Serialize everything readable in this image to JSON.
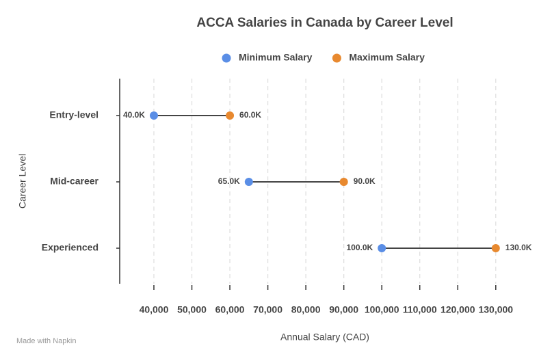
{
  "chart_data": {
    "type": "dumbbell",
    "title": "ACCA Salaries in Canada by Career Level",
    "categories": [
      "Entry-level",
      "Mid-career",
      "Experienced"
    ],
    "series": [
      {
        "name": "Minimum Salary",
        "color": "#5a8ee6",
        "values": [
          40000,
          65000,
          100000
        ],
        "value_labels": [
          "40.0K",
          "65.0K",
          "100.0K"
        ]
      },
      {
        "name": "Maximum Salary",
        "color": "#e8892f",
        "values": [
          60000,
          90000,
          130000
        ],
        "value_labels": [
          "60.0K",
          "90.0K",
          "130.0K"
        ]
      }
    ],
    "xlabel": "Annual Salary (CAD)",
    "ylabel": "Career Level",
    "xlim": [
      31000,
      134000
    ],
    "xticks": [
      {
        "value": 40000,
        "label": "40,000"
      },
      {
        "value": 50000,
        "label": "50,000"
      },
      {
        "value": 60000,
        "label": "60,000"
      },
      {
        "value": 70000,
        "label": "70,000"
      },
      {
        "value": 80000,
        "label": "80,000"
      },
      {
        "value": 90000,
        "label": "90,000"
      },
      {
        "value": 100000,
        "label": "100,000"
      },
      {
        "value": 110000,
        "label": "110,000"
      },
      {
        "value": 120000,
        "label": "120,000"
      },
      {
        "value": 130000,
        "label": "130,000"
      }
    ],
    "grid": true,
    "legend": "top",
    "footer": "Made with Napkin"
  }
}
